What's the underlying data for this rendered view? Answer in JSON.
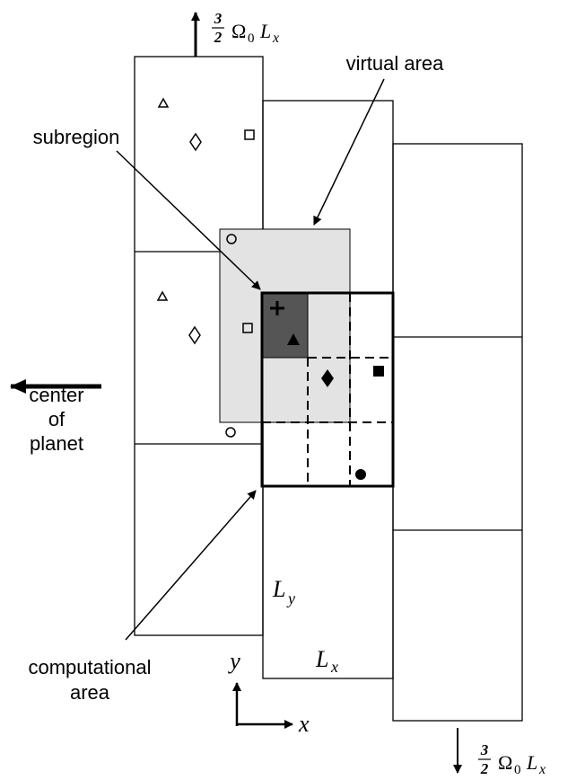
{
  "labels": {
    "shear_top": {
      "numerator": "3",
      "denominator": "2",
      "omega": "Ω",
      "omega_sub": "0",
      "length": "L",
      "length_sub": "x"
    },
    "shear_bottom": {
      "numerator": "3",
      "denominator": "2",
      "omega": "Ω",
      "omega_sub": "0",
      "length": "L",
      "length_sub": "x"
    },
    "virtual_area": "virtual area",
    "subregion": "subregion",
    "center_of_planet": [
      "center",
      "of",
      "planet"
    ],
    "computational_area": [
      "computational",
      "area"
    ],
    "ly": {
      "symbol": "L",
      "sub": "y"
    },
    "lx": {
      "symbol": "L",
      "sub": "x"
    },
    "axis_y": "y",
    "axis_x": "x"
  }
}
